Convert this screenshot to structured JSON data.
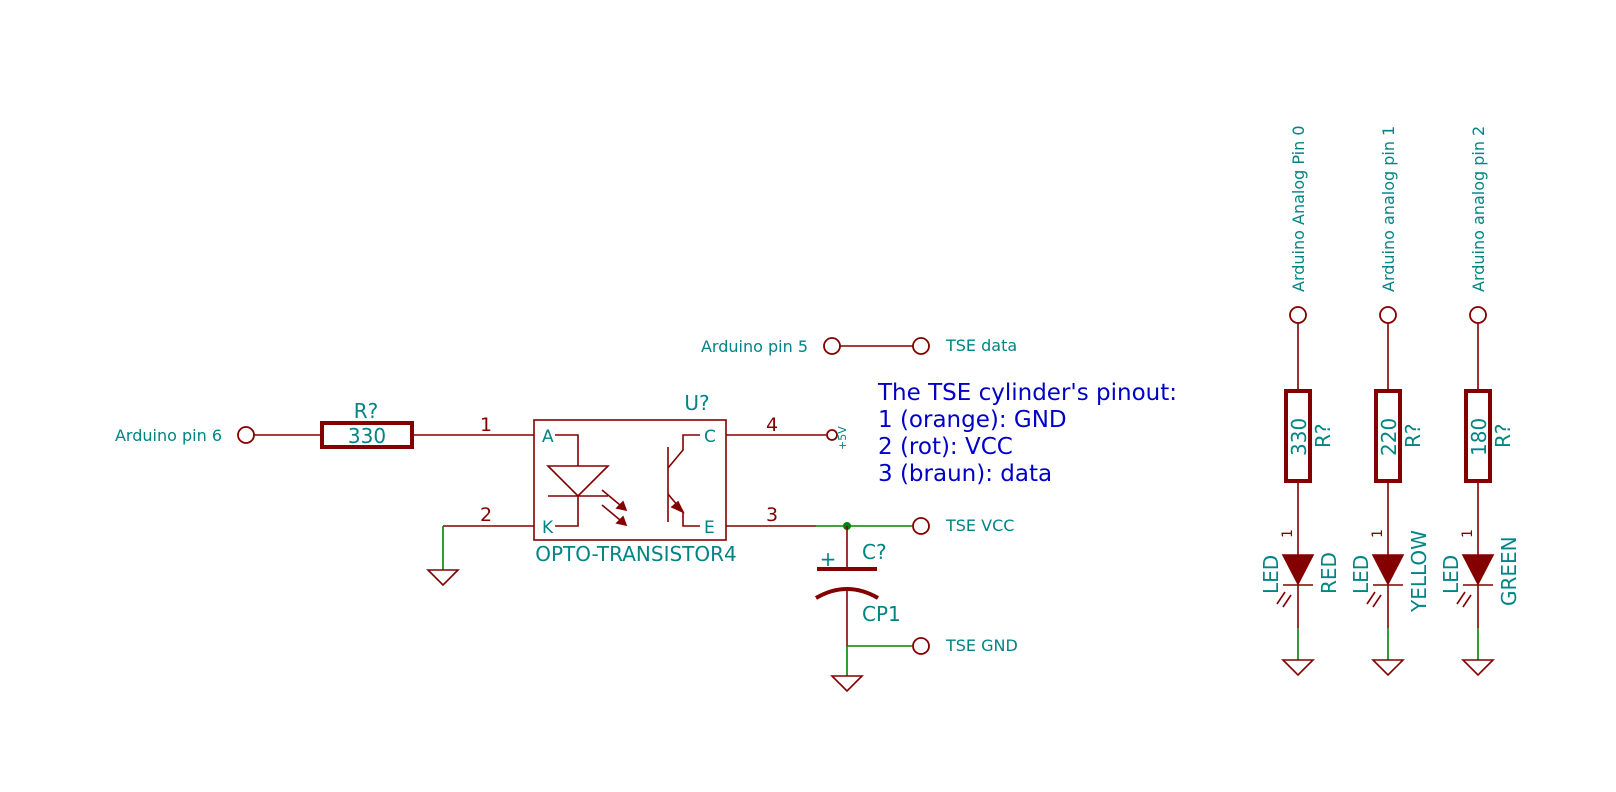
{
  "ports": {
    "arduino_pin6": "Arduino pin 6",
    "arduino_pin5": "Arduino pin 5",
    "tse_data": "TSE data",
    "tse_vcc": "TSE VCC",
    "tse_gnd": "TSE GND",
    "analog_pin0": "Arduino Analog Pin 0",
    "analog_pin1": "Arduino analog pin 1",
    "analog_pin2": "Arduino analog pin 2",
    "plus5v": "+5V"
  },
  "resistor_main": {
    "ref": "R?",
    "value": "330"
  },
  "optocoupler": {
    "ref": "U?",
    "value": "OPTO-TRANSISTOR4",
    "pins": {
      "p1": "1",
      "p2": "2",
      "p3": "3",
      "p4": "4",
      "a": "A",
      "k": "K",
      "c": "C",
      "e": "E"
    }
  },
  "capacitor": {
    "ref": "C?",
    "value": "CP1",
    "plus": "+"
  },
  "note": {
    "line1": "The TSE cylinder's pinout:",
    "line2": "1 (orange): GND",
    "line3": "2 (rot): VCC",
    "line4": "3 (braun): data"
  },
  "led_resistors": [
    {
      "value": "330",
      "ref": "R?"
    },
    {
      "value": "220",
      "ref": "R?"
    },
    {
      "value": "180",
      "ref": "R?"
    }
  ],
  "leds": [
    {
      "ref": "LED",
      "color": "RED",
      "pin": "1"
    },
    {
      "ref": "LED",
      "color": "YELLOW",
      "pin": "1"
    },
    {
      "ref": "LED",
      "color": "GREEN",
      "pin": "1"
    }
  ],
  "colors": {
    "wire": "#840000",
    "net": "#008400",
    "label": "#008484",
    "note": "#0000c8"
  }
}
